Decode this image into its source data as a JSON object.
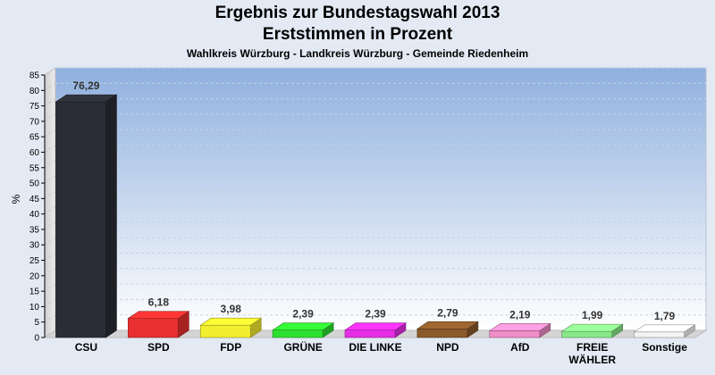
{
  "chart_data": {
    "type": "bar",
    "title": "Ergebnis zur Bundestagswahl 2013",
    "subtitle": "Erststimmen in Prozent",
    "caption": "Wahlkreis Würzburg - Landkreis Würzburg - Gemeinde Riedenheim",
    "ylabel": "%",
    "ylim": [
      0,
      85
    ],
    "yticks": [
      0,
      5,
      10,
      15,
      20,
      25,
      30,
      35,
      40,
      45,
      50,
      55,
      60,
      65,
      70,
      75,
      80,
      85
    ],
    "grid": true,
    "categories": [
      "CSU",
      "SPD",
      "FDP",
      "GRÜNE",
      "DIE LINKE",
      "NPD",
      "AfD",
      "FREIE WÄHLER",
      "Sonstige"
    ],
    "category_lines": [
      [
        "CSU"
      ],
      [
        "SPD"
      ],
      [
        "FDP"
      ],
      [
        "GRÜNE"
      ],
      [
        "DIE LINKE"
      ],
      [
        "NPD"
      ],
      [
        "AfD"
      ],
      [
        "FREIE",
        "WÄHLER"
      ],
      [
        "Sonstige"
      ]
    ],
    "values": [
      76.29,
      6.18,
      3.98,
      2.39,
      2.39,
      2.79,
      2.19,
      1.99,
      1.79
    ],
    "value_labels": [
      "76,29",
      "6,18",
      "3,98",
      "2,39",
      "2,39",
      "2,79",
      "2,19",
      "1,99",
      "1,79"
    ],
    "colors": [
      "#2a2d35",
      "#e83030",
      "#f2ee30",
      "#2ee030",
      "#e52ee5",
      "#8b5a2b",
      "#f08cc8",
      "#88e888",
      "#f4f4f4"
    ]
  }
}
